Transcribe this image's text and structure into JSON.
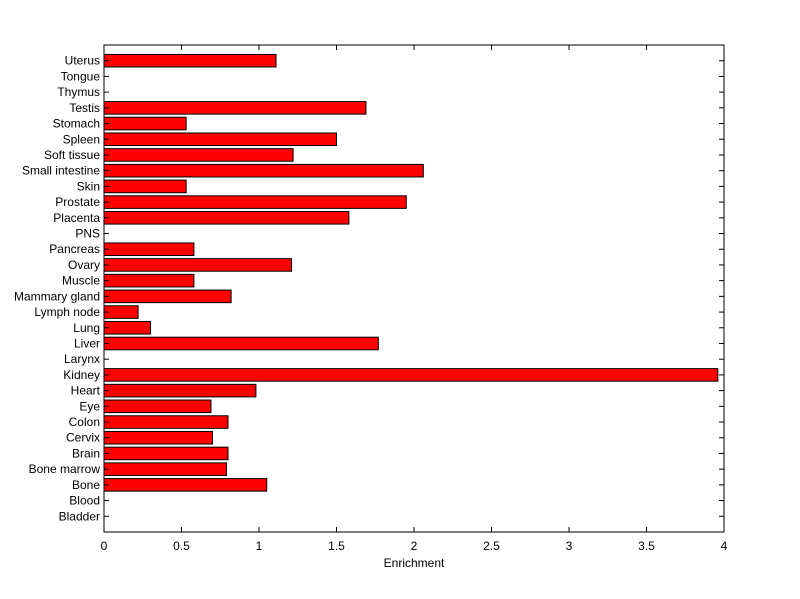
{
  "chart_data": {
    "type": "bar",
    "orientation": "horizontal",
    "title": "",
    "xlabel": "Enrichment",
    "ylabel": "",
    "xlim": [
      0,
      4
    ],
    "xticks": [
      0,
      0.5,
      1,
      1.5,
      2,
      2.5,
      3,
      3.5,
      4
    ],
    "xtick_labels": [
      "0",
      "0.5",
      "1",
      "1.5",
      "2",
      "2.5",
      "3",
      "3.5",
      "4"
    ],
    "grid": false,
    "bar_color": "#ff0000",
    "categories": [
      "Bladder",
      "Blood",
      "Bone",
      "Bone marrow",
      "Brain",
      "Cervix",
      "Colon",
      "Eye",
      "Heart",
      "Kidney",
      "Larynx",
      "Liver",
      "Lung",
      "Lymph node",
      "Mammary gland",
      "Muscle",
      "Ovary",
      "Pancreas",
      "PNS",
      "Placenta",
      "Prostate",
      "Skin",
      "Small intestine",
      "Soft tissue",
      "Spleen",
      "Stomach",
      "Testis",
      "Thymus",
      "Tongue",
      "Uterus"
    ],
    "values": [
      0,
      0,
      1.05,
      0.79,
      0.8,
      0.7,
      0.8,
      0.69,
      0.98,
      3.96,
      0,
      1.77,
      0.3,
      0.22,
      0.82,
      0.58,
      1.21,
      0.58,
      0,
      1.58,
      1.95,
      0.53,
      2.06,
      1.22,
      1.5,
      0.53,
      1.69,
      0,
      0,
      1.11
    ]
  }
}
